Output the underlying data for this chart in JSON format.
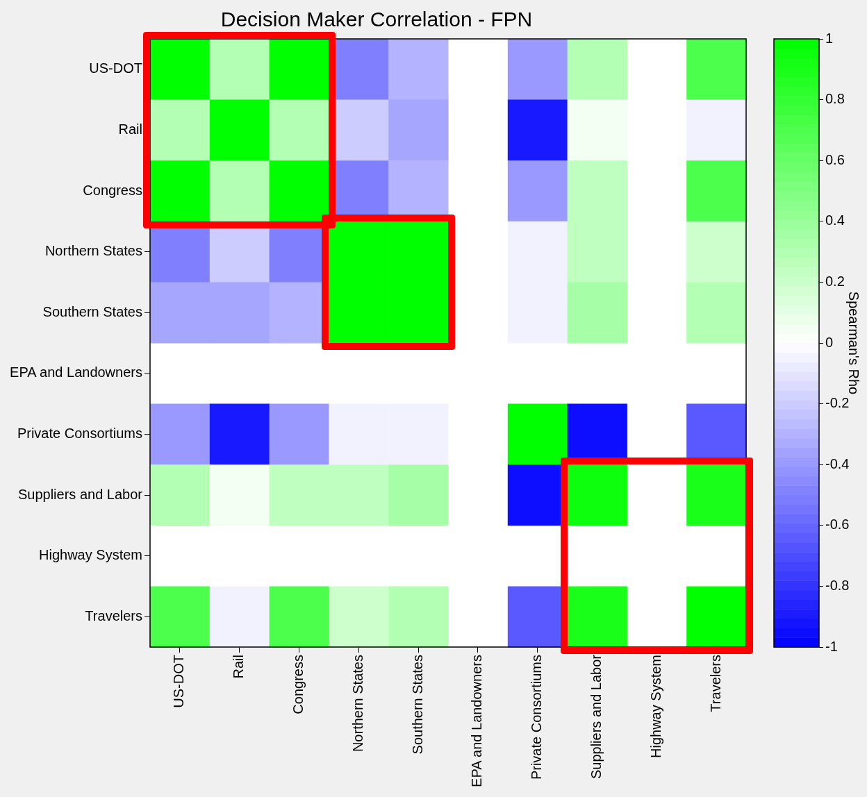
{
  "chart_data": {
    "type": "heatmap",
    "title": "Decision Maker Correlation - FPN",
    "clabel": "Spearman's Rho",
    "categories": [
      "US-DOT",
      "Rail",
      "Congress",
      "Northern States",
      "Southern States",
      "EPA and Landowners",
      "Private Consortiums",
      "Suppliers and Labor",
      "Highway System",
      "Travelers"
    ],
    "y_categories": [
      "US-DOT",
      "Rail",
      "Congress",
      "Northern States",
      "Southern States",
      "EPA and Landowners",
      "Private Consortiums",
      "Suppliers and Labor",
      "Highway System",
      "Travelers"
    ],
    "cells": [
      [
        1,
        0.3,
        1,
        -0.5,
        -0.3,
        null,
        -0.4,
        0.3,
        null,
        0.7
      ],
      [
        0.3,
        1,
        0.3,
        -0.2,
        -0.35,
        null,
        -0.9,
        0.05,
        null,
        -0.05
      ],
      [
        1,
        0.3,
        1,
        -0.5,
        -0.3,
        null,
        -0.4,
        0.25,
        null,
        0.7
      ],
      [
        -0.5,
        -0.2,
        -0.5,
        1,
        1,
        null,
        -0.05,
        0.25,
        null,
        0.2
      ],
      [
        -0.35,
        -0.35,
        -0.3,
        1,
        1,
        null,
        -0.05,
        0.35,
        null,
        0.3
      ],
      [
        null,
        null,
        null,
        null,
        null,
        null,
        null,
        null,
        null,
        null
      ],
      [
        -0.4,
        -0.9,
        -0.4,
        -0.05,
        -0.05,
        null,
        1,
        -0.95,
        null,
        -0.65
      ],
      [
        0.3,
        0.05,
        0.25,
        0.25,
        0.35,
        null,
        -0.95,
        0.95,
        null,
        0.9
      ],
      [
        null,
        null,
        null,
        null,
        null,
        null,
        null,
        null,
        null,
        null
      ],
      [
        0.7,
        -0.05,
        0.7,
        0.2,
        0.3,
        null,
        -0.65,
        0.9,
        null,
        1
      ]
    ],
    "clim": [
      -1,
      1
    ],
    "cticks": [
      -1,
      -0.8,
      -0.6,
      -0.4,
      -0.2,
      0,
      0.2,
      0.4,
      0.6,
      0.8,
      1
    ]
  }
}
